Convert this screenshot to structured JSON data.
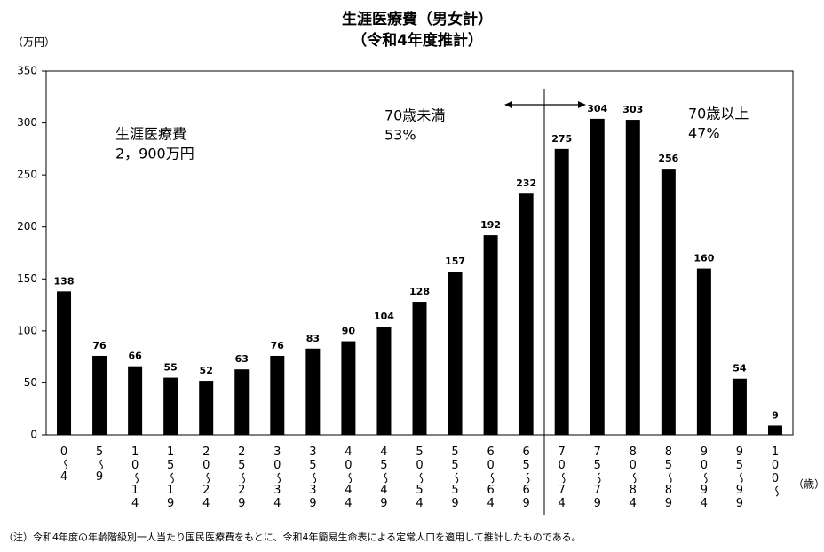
{
  "chart_data": {
    "type": "bar",
    "title": "生涯医療費（男女計）",
    "subtitle": "（令和4年度推計）",
    "y_unit": "（万円）",
    "x_unit": "（歳）",
    "categories": [
      "0～4",
      "5～9",
      "10～14",
      "15～19",
      "20～24",
      "25～29",
      "30～34",
      "35～39",
      "40～44",
      "45～49",
      "50～54",
      "55～59",
      "60～64",
      "65～69",
      "70～74",
      "75～79",
      "80～84",
      "85～89",
      "90～94",
      "95～99",
      "100～"
    ],
    "values": [
      138,
      76,
      66,
      55,
      52,
      63,
      76,
      83,
      90,
      104,
      128,
      157,
      192,
      232,
      275,
      304,
      303,
      256,
      160,
      54,
      9
    ],
    "color": "#000000",
    "ylim": [
      0,
      350
    ],
    "yticks": [
      0,
      50,
      100,
      150,
      200,
      250,
      300,
      350
    ],
    "grid": false,
    "annotations": [
      [
        "生涯医療費",
        "2，900万円"
      ],
      [
        "70歳未満",
        "53%"
      ],
      [
        "70歳以上",
        "47%"
      ]
    ],
    "note": "（注）令和4年度の年齢階級別一人当たり国民医療費をもとに、令和4年簡易生命表による定常人口を適用して推計したものである。"
  }
}
